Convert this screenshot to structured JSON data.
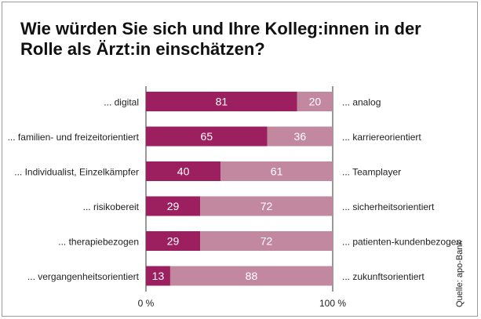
{
  "title": "Wie würden Sie sich und Ihre Kolleg:innen in der Rolle als Ärzt:in einschätzen?",
  "source": "Quelle: apo-Bank",
  "colors": {
    "primary": "#9c1f5f",
    "secondary": "#c2889f"
  },
  "chart_data": {
    "type": "bar",
    "orientation": "horizontal",
    "stacked": true,
    "title": "Wie würden Sie sich und Ihre Kolleg:innen in der Rolle als Ärzt:in einschätzen?",
    "categories_left": [
      "... digital",
      "... familien- und freizeitorientiert",
      "... Individualist, Einzelkämpfer",
      "... risikobereit",
      "... therapiebezogen",
      "... vergangenheitsorientiert"
    ],
    "categories_right": [
      "... analog",
      "... karriereorientiert",
      "... Teamplayer",
      "... sicherheitsorientiert",
      "... patienten-kundenbezogen",
      "... zukunftsorientiert"
    ],
    "series": [
      {
        "values": [
          81,
          65,
          40,
          29,
          29,
          13
        ]
      },
      {
        "values": [
          20,
          36,
          61,
          72,
          72,
          88
        ]
      }
    ],
    "xlim": [
      0,
      100
    ],
    "x_ticks": [
      "0 %",
      "100 %"
    ],
    "grid": false
  }
}
